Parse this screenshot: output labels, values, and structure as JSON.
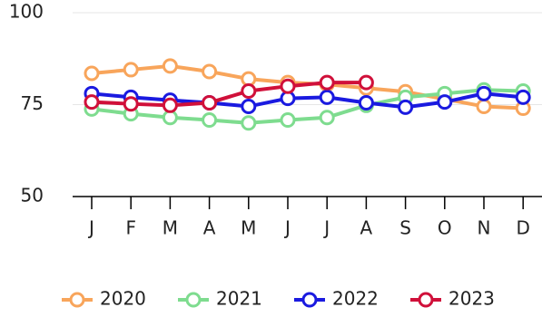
{
  "chart_data": {
    "type": "line",
    "categories": [
      "J",
      "F",
      "M",
      "A",
      "M",
      "J",
      "J",
      "A",
      "S",
      "O",
      "N",
      "D"
    ],
    "series": [
      {
        "name": "2020",
        "color": "#f8a55b",
        "values": [
          83.5,
          84.5,
          85.5,
          84,
          82,
          81,
          80.5,
          79.5,
          78.5,
          76.5,
          74.5,
          74
        ]
      },
      {
        "name": "2021",
        "color": "#7edc8f",
        "values": [
          73.8,
          72.5,
          71.5,
          70.8,
          70,
          70.8,
          71.5,
          74.8,
          77,
          78,
          79,
          78.7
        ]
      },
      {
        "name": "2022",
        "color": "#1a1ae0",
        "values": [
          78,
          77,
          76.2,
          75.5,
          74.5,
          76.7,
          77,
          75.5,
          74.3,
          75.7,
          78,
          77
        ]
      },
      {
        "name": "2023",
        "color": "#d0103a",
        "values": [
          75.7,
          75.2,
          74.8,
          75.5,
          78.7,
          80,
          81,
          81,
          null,
          null,
          null,
          null
        ]
      }
    ],
    "ylim": [
      50,
      100
    ],
    "yticks": [
      50,
      75,
      100
    ],
    "grid": true,
    "legend": "bottom"
  }
}
